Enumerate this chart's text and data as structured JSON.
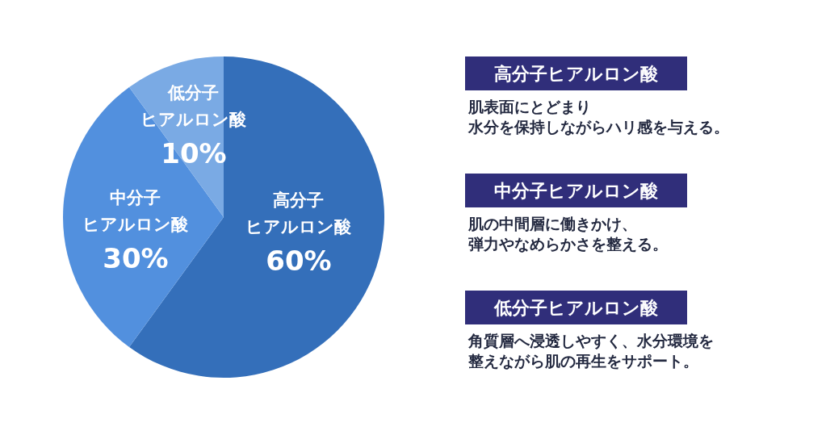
{
  "chart_data": {
    "type": "pie",
    "categories": [
      "高分子ヒアルロン酸",
      "中分子ヒアルロン酸",
      "低分子ヒアルロン酸"
    ],
    "values": [
      60,
      30,
      10
    ],
    "colors": [
      "#346fba",
      "#5290de",
      "#7aaae4"
    ],
    "value_labels": [
      "60%",
      "30%",
      "10%"
    ],
    "annotations": [
      "高分子ヒアルロン酸",
      "肌表面にとどまり水分を保持しながらハリ感を与える。",
      "中分子ヒアルロン酸",
      "肌の中間層に働きかけ、弾力やなめらかさを整える。",
      "低分子ヒアルロン酸",
      "角質層へ浸透しやすく、水分環境を整えながら肌の再生をサポート。"
    ]
  }
}
